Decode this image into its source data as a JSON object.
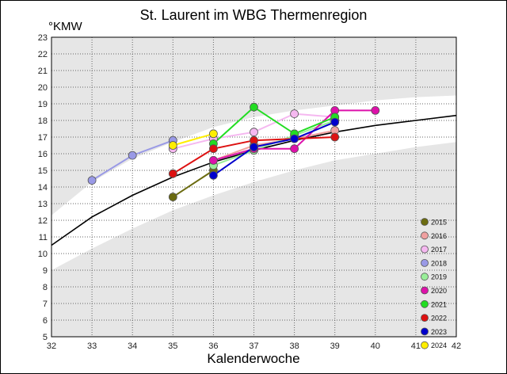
{
  "chart_data": {
    "type": "line",
    "title": "St. Laurent im WBG Thermenregion",
    "xlabel": "Kalenderwoche",
    "ylabel": "°KMW",
    "xlim": [
      32,
      42
    ],
    "ylim": [
      5,
      23
    ],
    "x_ticks": [
      "32",
      "33",
      "34",
      "35",
      "36",
      "37",
      "38",
      "39",
      "40",
      "41",
      "42"
    ],
    "y_ticks": [
      "5",
      "6",
      "7",
      "8",
      "9",
      "10",
      "11",
      "12",
      "13",
      "14",
      "15",
      "16",
      "17",
      "18",
      "19",
      "20",
      "21",
      "22",
      "23"
    ],
    "grid": true,
    "legend_position": "bottom-right",
    "trend_line": {
      "x": [
        32,
        33,
        34,
        35,
        36,
        37,
        38,
        39,
        40,
        41,
        42
      ],
      "y": [
        10.5,
        12.2,
        13.5,
        14.6,
        15.5,
        16.2,
        16.8,
        17.3,
        17.7,
        18.0,
        18.3
      ]
    },
    "band_upper": {
      "x": [
        32,
        33,
        34,
        35,
        36,
        37,
        38,
        39,
        40,
        41,
        42
      ],
      "y": [
        12.3,
        14.3,
        15.7,
        16.7,
        17.6,
        18.2,
        18.6,
        18.9,
        19.2,
        19.4,
        19.5
      ]
    },
    "band_lower": {
      "x": [
        32,
        33,
        34,
        35,
        36,
        37,
        38,
        39,
        40,
        41,
        42
      ],
      "y": [
        9.0,
        10.3,
        11.5,
        12.6,
        13.5,
        14.3,
        15.0,
        15.6,
        16.0,
        16.4,
        16.7
      ]
    },
    "series": [
      {
        "name": "2015",
        "color": "#6b6b10",
        "x": [
          35,
          36
        ],
        "y": [
          13.4,
          15.0
        ]
      },
      {
        "name": "2016",
        "color": "#f0a0a0",
        "x": [
          36,
          37,
          38,
          39
        ],
        "y": [
          15.6,
          16.5,
          16.9,
          17.4
        ]
      },
      {
        "name": "2017",
        "color": "#f5b8f0",
        "x": [
          35,
          36,
          37,
          38,
          39
        ],
        "y": [
          16.3,
          16.9,
          17.3,
          18.4,
          18.2
        ]
      },
      {
        "name": "2018",
        "color": "#9999e6",
        "x": [
          33,
          34,
          35
        ],
        "y": [
          14.4,
          15.9,
          16.8
        ]
      },
      {
        "name": "2019",
        "color": "#99ee99",
        "x": [
          36,
          37,
          38,
          39
        ],
        "y": [
          15.3,
          16.2,
          17.1,
          18.0
        ]
      },
      {
        "name": "2020",
        "color": "#dd11aa",
        "x": [
          36,
          37,
          38,
          39,
          40
        ],
        "y": [
          15.6,
          16.3,
          16.3,
          18.6,
          18.6
        ]
      },
      {
        "name": "2021",
        "color": "#22dd22",
        "x": [
          36,
          37,
          38,
          39
        ],
        "y": [
          16.6,
          18.8,
          17.2,
          18.2
        ]
      },
      {
        "name": "2022",
        "color": "#dd1111",
        "x": [
          35,
          36,
          37,
          38,
          39
        ],
        "y": [
          14.8,
          16.3,
          16.8,
          16.9,
          17.0
        ]
      },
      {
        "name": "2023",
        "color": "#0000cc",
        "x": [
          36,
          37,
          38,
          39
        ],
        "y": [
          14.7,
          16.4,
          16.9,
          17.9
        ]
      },
      {
        "name": "2024",
        "color": "#ffee00",
        "x": [
          35,
          36
        ],
        "y": [
          16.5,
          17.2
        ]
      }
    ]
  }
}
